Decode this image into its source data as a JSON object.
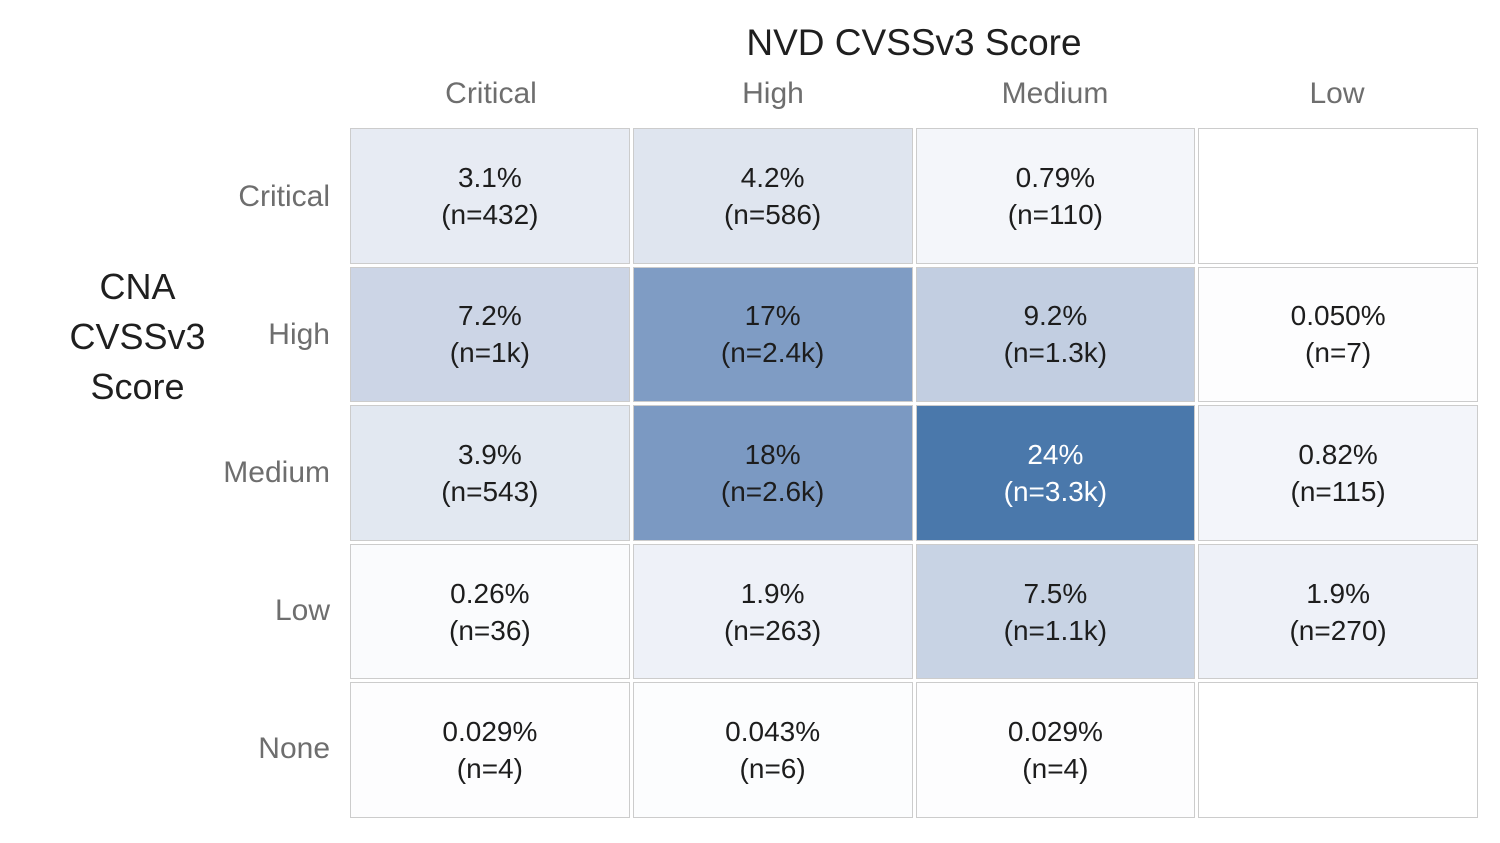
{
  "figure": {
    "background": "#ffffff",
    "grid_line_color": "#cccccc",
    "axis_label_color": "#6e6e6e",
    "title_color": "#1f1f1f",
    "cell_text_color": "#1d1d1d",
    "max_cell_fill": "#4a78ab",
    "min_cell_fill": "#ffffff"
  },
  "y_axis_label_lines": [
    "CNA",
    "CVSSv3",
    "Score"
  ],
  "chart_data": {
    "type": "heatmap",
    "xlabel": "NVD CVSSv3 Score",
    "ylabel": "CNA CVSSv3 Score",
    "columns": [
      "Critical",
      "High",
      "Medium",
      "Low"
    ],
    "rows": [
      "Critical",
      "High",
      "Medium",
      "Low",
      "None"
    ],
    "value_unit": "percent of all CVEs",
    "legend": "none",
    "grid": "off",
    "cells": [
      [
        {
          "row": "Critical",
          "col": "Critical",
          "pct_label": "3.1%",
          "n_label": "(n=432)",
          "percent": 3.1,
          "count": 432,
          "fill": "#e7ebf3",
          "text_color": "#1d1d1d"
        },
        {
          "row": "Critical",
          "col": "High",
          "pct_label": "4.2%",
          "n_label": "(n=586)",
          "percent": 4.2,
          "count": 586,
          "fill": "#dfe5ef",
          "text_color": "#1d1d1d"
        },
        {
          "row": "Critical",
          "col": "Medium",
          "pct_label": "0.79%",
          "n_label": "(n=110)",
          "percent": 0.79,
          "count": 110,
          "fill": "#f4f6fa",
          "text_color": "#1d1d1d"
        },
        {
          "row": "Critical",
          "col": "Low",
          "pct_label": "",
          "n_label": "",
          "percent": null,
          "count": null,
          "fill": "#ffffff",
          "text_color": "#1d1d1d"
        }
      ],
      [
        {
          "row": "High",
          "col": "Critical",
          "pct_label": "7.2%",
          "n_label": "(n=1k)",
          "percent": 7.2,
          "count": 1000,
          "fill": "#ccd5e6",
          "text_color": "#1d1d1d"
        },
        {
          "row": "High",
          "col": "High",
          "pct_label": "17%",
          "n_label": "(n=2.4k)",
          "percent": 17,
          "count": 2400,
          "fill": "#7f9cc4",
          "text_color": "#1d1d1d"
        },
        {
          "row": "High",
          "col": "Medium",
          "pct_label": "9.2%",
          "n_label": "(n=1.3k)",
          "percent": 9.2,
          "count": 1300,
          "fill": "#c2cee1",
          "text_color": "#1d1d1d"
        },
        {
          "row": "High",
          "col": "Low",
          "pct_label": "0.050%",
          "n_label": "(n=7)",
          "percent": 0.05,
          "count": 7,
          "fill": "#fdfdfe",
          "text_color": "#1d1d1d"
        }
      ],
      [
        {
          "row": "Medium",
          "col": "Critical",
          "pct_label": "3.9%",
          "n_label": "(n=543)",
          "percent": 3.9,
          "count": 543,
          "fill": "#e2e8f1",
          "text_color": "#1d1d1d"
        },
        {
          "row": "Medium",
          "col": "High",
          "pct_label": "18%",
          "n_label": "(n=2.6k)",
          "percent": 18,
          "count": 2600,
          "fill": "#7b99c2",
          "text_color": "#1d1d1d"
        },
        {
          "row": "Medium",
          "col": "Medium",
          "pct_label": "24%",
          "n_label": "(n=3.3k)",
          "percent": 24,
          "count": 3300,
          "fill": "#4a78ab",
          "text_color": "#ffffff"
        },
        {
          "row": "Medium",
          "col": "Low",
          "pct_label": "0.82%",
          "n_label": "(n=115)",
          "percent": 0.82,
          "count": 115,
          "fill": "#f3f5fa",
          "text_color": "#1d1d1d"
        }
      ],
      [
        {
          "row": "Low",
          "col": "Critical",
          "pct_label": "0.26%",
          "n_label": "(n=36)",
          "percent": 0.26,
          "count": 36,
          "fill": "#fafbfd",
          "text_color": "#1d1d1d"
        },
        {
          "row": "Low",
          "col": "High",
          "pct_label": "1.9%",
          "n_label": "(n=263)",
          "percent": 1.9,
          "count": 263,
          "fill": "#eef1f8",
          "text_color": "#1d1d1d"
        },
        {
          "row": "Low",
          "col": "Medium",
          "pct_label": "7.5%",
          "n_label": "(n=1.1k)",
          "percent": 7.5,
          "count": 1100,
          "fill": "#c8d3e4",
          "text_color": "#1d1d1d"
        },
        {
          "row": "Low",
          "col": "Low",
          "pct_label": "1.9%",
          "n_label": "(n=270)",
          "percent": 1.9,
          "count": 270,
          "fill": "#eef1f8",
          "text_color": "#1d1d1d"
        }
      ],
      [
        {
          "row": "None",
          "col": "Critical",
          "pct_label": "0.029%",
          "n_label": "(n=4)",
          "percent": 0.029,
          "count": 4,
          "fill": "#fdfdfe",
          "text_color": "#1d1d1d"
        },
        {
          "row": "None",
          "col": "High",
          "pct_label": "0.043%",
          "n_label": "(n=6)",
          "percent": 0.043,
          "count": 6,
          "fill": "#fcfdfe",
          "text_color": "#1d1d1d"
        },
        {
          "row": "None",
          "col": "Medium",
          "pct_label": "0.029%",
          "n_label": "(n=4)",
          "percent": 0.029,
          "count": 4,
          "fill": "#fdfdfe",
          "text_color": "#1d1d1d"
        },
        {
          "row": "None",
          "col": "Low",
          "pct_label": "",
          "n_label": "",
          "percent": null,
          "count": null,
          "fill": "#ffffff",
          "text_color": "#1d1d1d"
        }
      ]
    ]
  }
}
